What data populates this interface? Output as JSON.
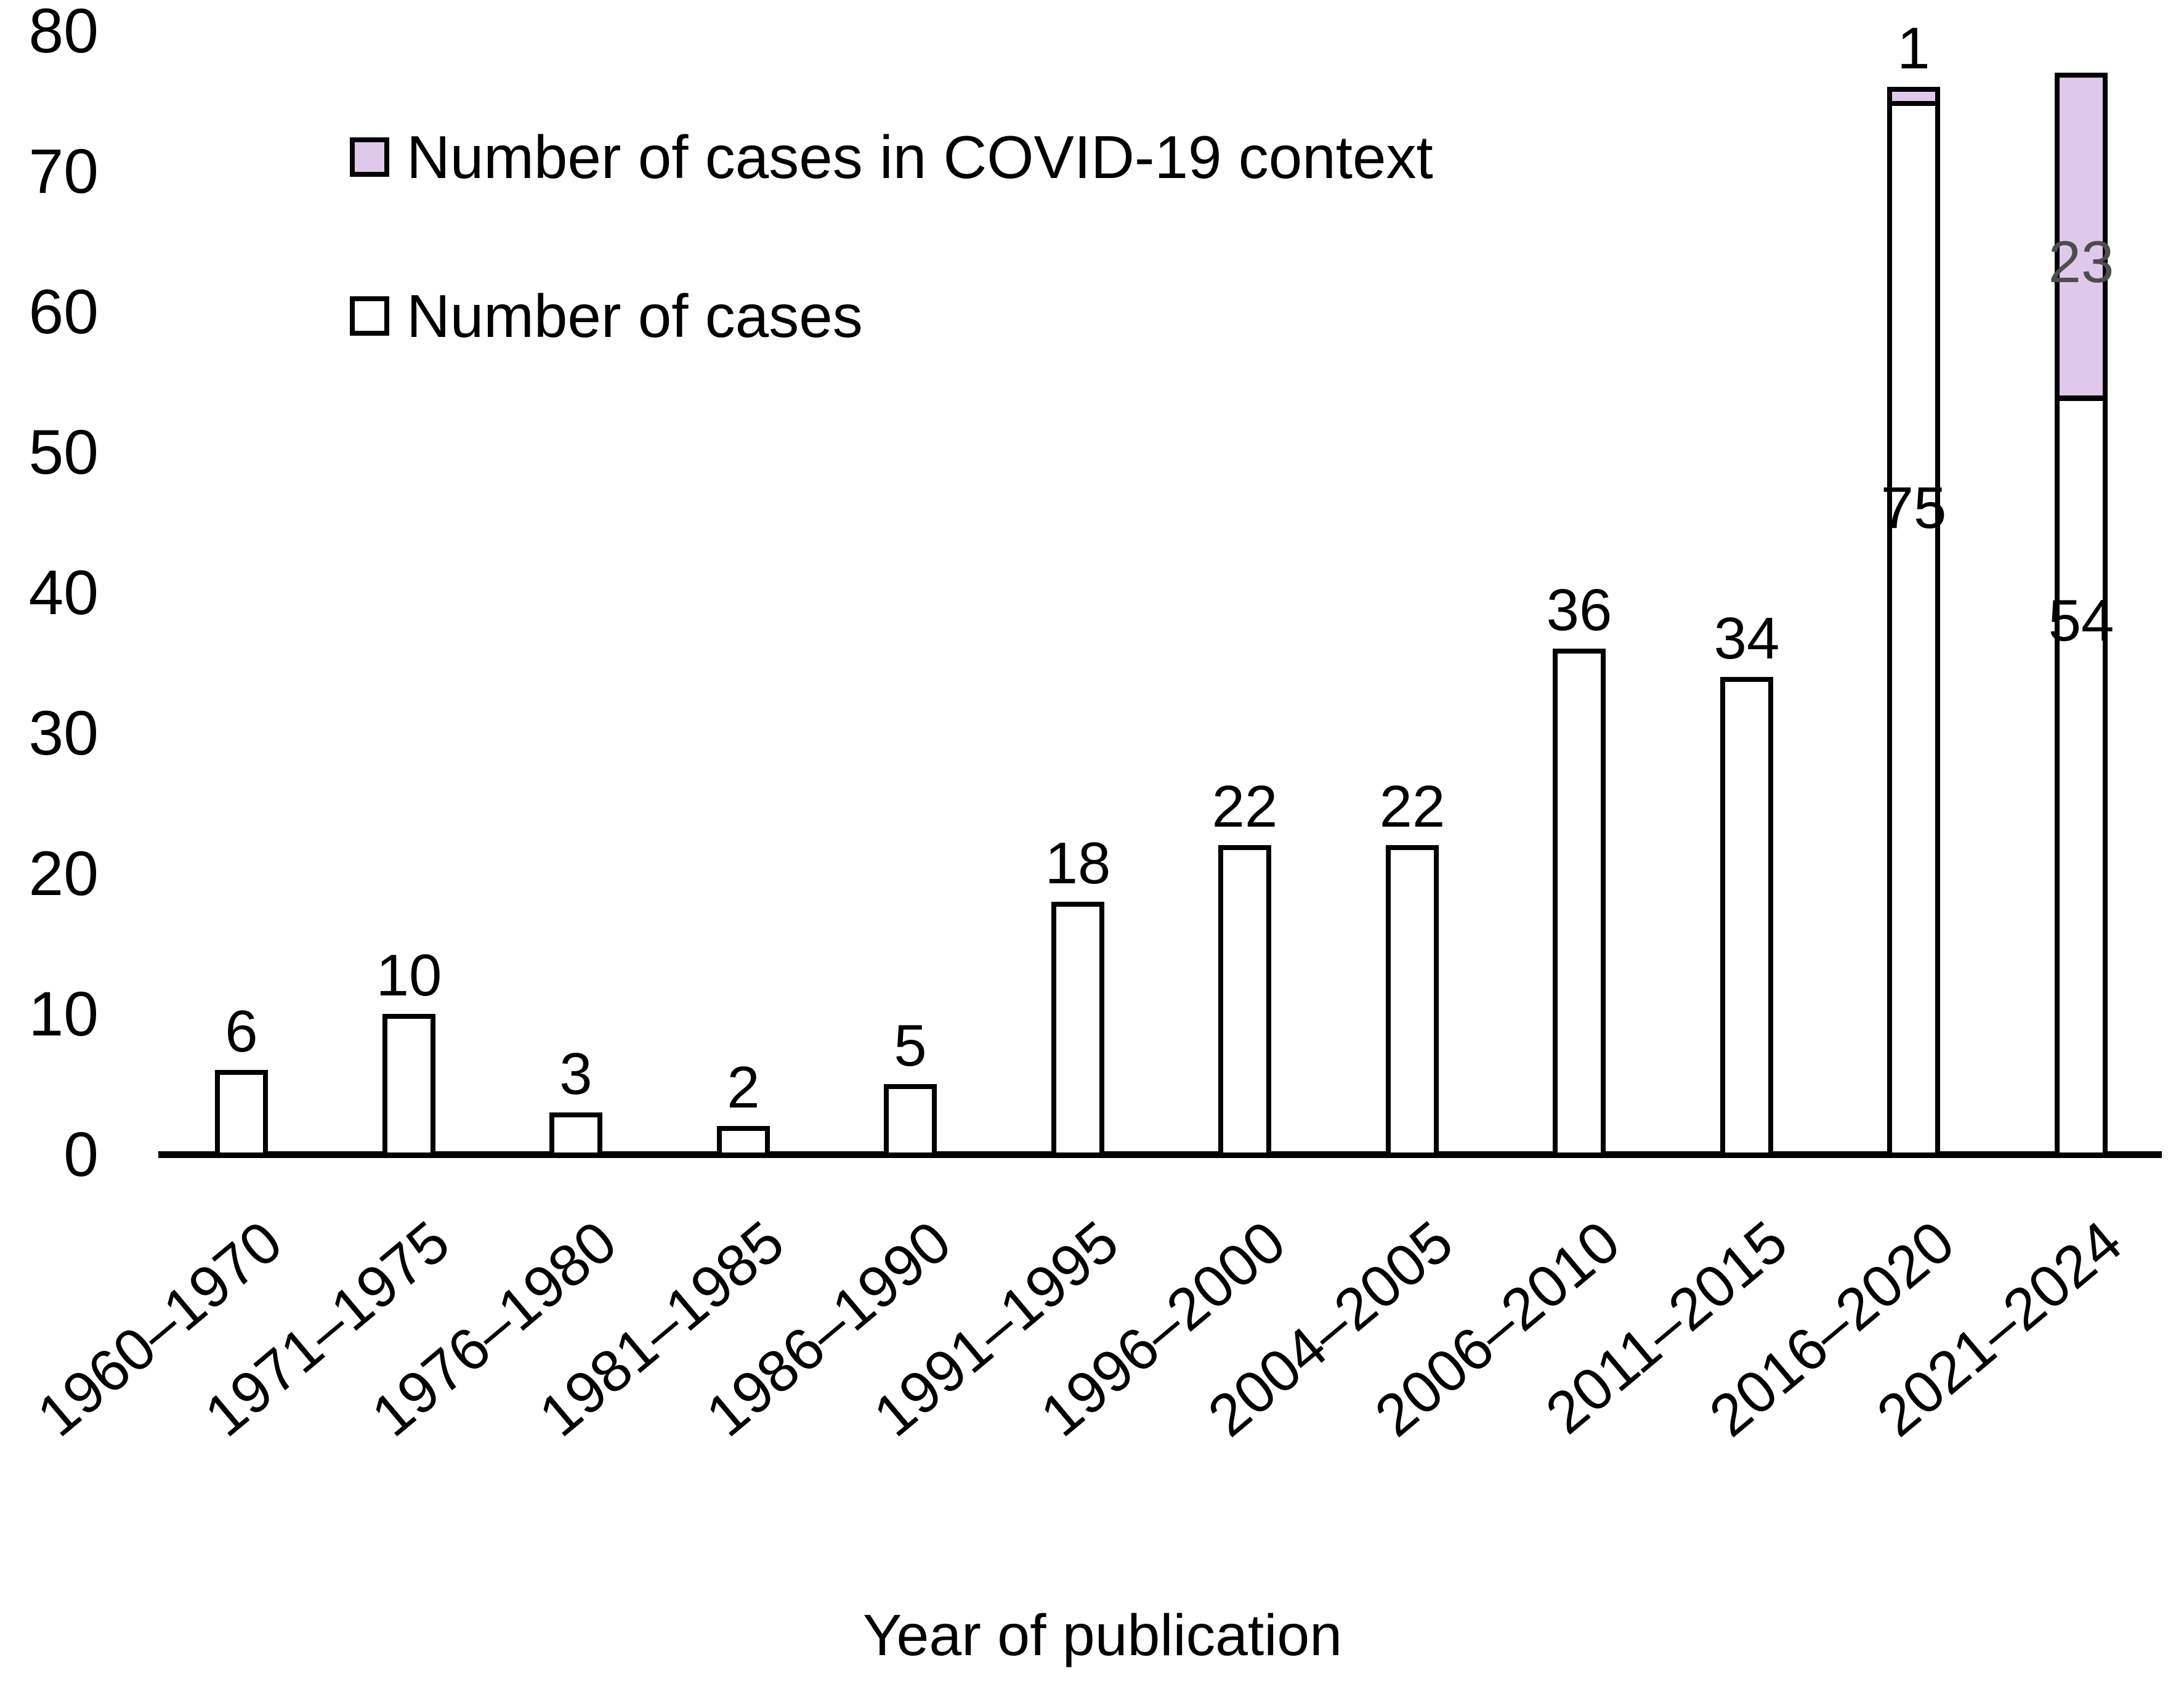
{
  "figure": {
    "background": "#ffffff",
    "text_color": "#000000",
    "axis_color": "#000000"
  },
  "chart_data": {
    "type": "bar",
    "stacked": true,
    "title": "",
    "xlabel": "Year of publication",
    "ylabel": "",
    "ylim": [
      0,
      80
    ],
    "yticks": [
      0,
      10,
      20,
      30,
      40,
      50,
      60,
      70,
      80
    ],
    "grid": false,
    "legend_position": "top-left-inside",
    "categories": [
      "1960–1970",
      "1971–1975",
      "1976–1980",
      "1981–1985",
      "1986–1990",
      "1991–1995",
      "1996–2000",
      "2004–2005",
      "2006–2010",
      "2011–2015",
      "2016–2020",
      "2021–2024"
    ],
    "series": [
      {
        "name": "Number of cases",
        "color": "#ffffff",
        "values": [
          6,
          10,
          3,
          2,
          5,
          18,
          22,
          22,
          36,
          34,
          75,
          54
        ]
      },
      {
        "name": "Number of cases in COVID-19 context",
        "color": "#dfc9eb",
        "values": [
          0,
          0,
          0,
          0,
          0,
          0,
          0,
          0,
          0,
          0,
          1,
          23
        ]
      }
    ],
    "legend": [
      {
        "label": "Number of cases in COVID-19 context",
        "color": "#dfc9eb"
      },
      {
        "label": "Number of cases",
        "color": "#ffffff"
      }
    ],
    "bar_labels": [
      {
        "bar": 0,
        "text": "6",
        "placement": "above",
        "color": "#000000"
      },
      {
        "bar": 1,
        "text": "10",
        "placement": "above",
        "color": "#000000"
      },
      {
        "bar": 2,
        "text": "3",
        "placement": "above",
        "color": "#000000"
      },
      {
        "bar": 3,
        "text": "2",
        "placement": "above",
        "color": "#000000"
      },
      {
        "bar": 4,
        "text": "5",
        "placement": "above",
        "color": "#000000"
      },
      {
        "bar": 5,
        "text": "18",
        "placement": "above",
        "color": "#000000"
      },
      {
        "bar": 6,
        "text": "22",
        "placement": "above",
        "color": "#000000"
      },
      {
        "bar": 7,
        "text": "22",
        "placement": "above",
        "color": "#000000"
      },
      {
        "bar": 8,
        "text": "36",
        "placement": "above",
        "color": "#000000"
      },
      {
        "bar": 9,
        "text": "34",
        "placement": "above",
        "color": "#000000"
      },
      {
        "bar": 10,
        "text": "1",
        "placement": "above",
        "color": "#000000"
      },
      {
        "bar": 10,
        "text": "75",
        "placement": "inside",
        "at_value": 46,
        "color": "#000000"
      },
      {
        "bar": 11,
        "text": "23",
        "placement": "inside",
        "at_value": 63.5,
        "color": "#4d4d4d"
      },
      {
        "bar": 11,
        "text": "54",
        "placement": "inside",
        "at_value": 38,
        "color": "#000000"
      }
    ]
  }
}
